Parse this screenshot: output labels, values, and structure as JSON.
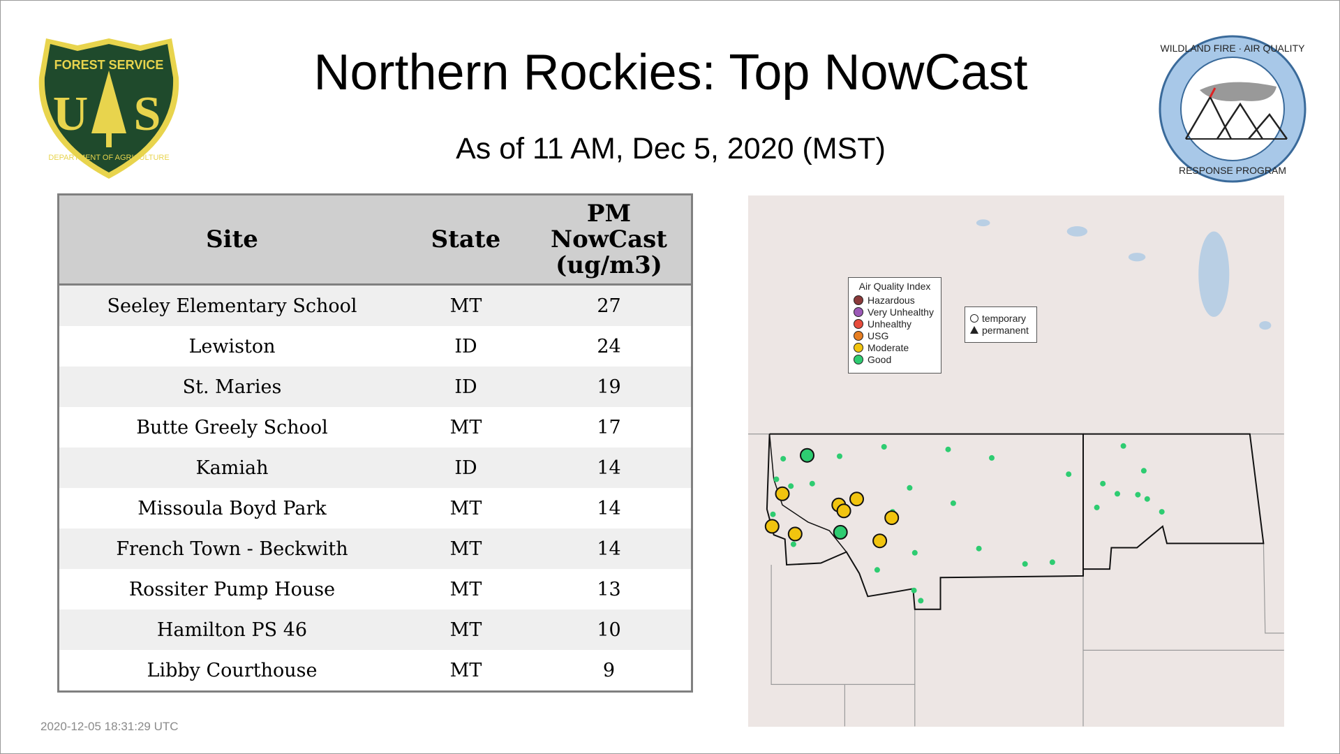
{
  "header": {
    "title": "Northern Rockies: Top NowCast",
    "subtitle": "As of 11 AM, Dec  5, 2020 (MST)"
  },
  "logos": {
    "left": "FOREST SERVICE U S DEPARTMENT OF AGRICULTURE",
    "right": "WILDLAND FIRE · AIR QUALITY RESPONSE PROGRAM"
  },
  "table": {
    "columns": [
      "Site",
      "State",
      "PM NowCast (ug/m3)"
    ],
    "header_pm_lines": [
      "PM",
      "NowCast",
      "(ug/m3)"
    ],
    "rows": [
      {
        "site": "Seeley Elementary School",
        "state": "MT",
        "value": "27"
      },
      {
        "site": "Lewiston",
        "state": "ID",
        "value": "24"
      },
      {
        "site": "St. Maries",
        "state": "ID",
        "value": "19"
      },
      {
        "site": "Butte Greely School",
        "state": "MT",
        "value": "17"
      },
      {
        "site": "Kamiah",
        "state": "ID",
        "value": "14"
      },
      {
        "site": "Missoula Boyd Park",
        "state": "MT",
        "value": "14"
      },
      {
        "site": "French Town - Beckwith",
        "state": "MT",
        "value": "14"
      },
      {
        "site": "Rossiter Pump House",
        "state": "MT",
        "value": "13"
      },
      {
        "site": "Hamilton PS 46",
        "state": "MT",
        "value": "10"
      },
      {
        "site": "Libby Courthouse",
        "state": "MT",
        "value": "9"
      }
    ]
  },
  "map": {
    "legend": {
      "title": "Air Quality Index",
      "items": [
        {
          "label": "Hazardous",
          "color": "#8b3a3a"
        },
        {
          "label": "Very Unhealthy",
          "color": "#9b59b6"
        },
        {
          "label": "Unhealthy",
          "color": "#e74c3c"
        },
        {
          "label": "USG",
          "color": "#e67e22"
        },
        {
          "label": "Moderate",
          "color": "#f1c40f"
        },
        {
          "label": "Good",
          "color": "#2ecc71"
        }
      ]
    },
    "type_legend": {
      "temporary": "temporary",
      "permanent": "permanent"
    }
  },
  "footer": {
    "timestamp": "2020-12-05 18:31:29 UTC"
  }
}
